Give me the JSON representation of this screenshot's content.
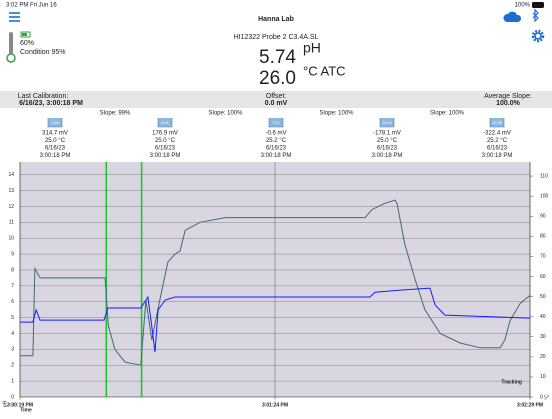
{
  "status_bar": {
    "time": "3:02 PM",
    "date": "Fri Jun 16",
    "battery": "100%"
  },
  "header": {
    "title": "Hanna Lab"
  },
  "probe": {
    "battery": "60%",
    "condition": "Condition 95%",
    "name": "HI12322 Probe 2 C3.4A.SL"
  },
  "reading": {
    "ph": "5.74",
    "ph_unit": "pH",
    "temp": "26.0",
    "temp_unit": "°C ATC"
  },
  "calibration": {
    "last_label": "Last Calibration:",
    "last_value": "6/16/23, 3:00:18 PM",
    "offset_label": "Offset:",
    "offset_value": "0.0 mV",
    "slope_label": "Average Slope:",
    "slope_value": "100.0%"
  },
  "slopes": [
    "Slope: 99%",
    "Slope: 100%",
    "Slope: 100%",
    "Slope: 100%"
  ],
  "buffers": [
    {
      "buffer": "1.68",
      "mv": "314.7 mV",
      "temp": "25.0 °C",
      "date": "6/16/23",
      "time": "3:00:18 PM"
    },
    {
      "buffer": "4.01",
      "mv": "176.9 mV",
      "temp": "25.0 °C",
      "date": "6/16/23",
      "time": "3:00:18 PM"
    },
    {
      "buffer": "7.01",
      "mv": "-0.6 mV",
      "temp": "25.2 °C",
      "date": "6/16/23",
      "time": "3:00:18 PM"
    },
    {
      "buffer": "10.01",
      "mv": "-178.1 mV",
      "temp": "25.0 °C",
      "date": "6/16/23",
      "time": "3:00:18 PM"
    },
    {
      "buffer": "12.45",
      "mv": "-322.4 mV",
      "temp": "25.2 °C",
      "date": "6/16/23",
      "time": "3:00:18 PM"
    }
  ],
  "chart_data": {
    "type": "line",
    "x_label": "Time",
    "y_label": "pH",
    "y2_label": "°C",
    "annotation": "Tracking",
    "xlim": [
      0,
      130
    ],
    "xticks": [
      {
        "value": 0,
        "label": "3:00:19 PM"
      },
      {
        "value": 65,
        "label": "3:01:24 PM"
      },
      {
        "value": 130,
        "label": "3:02:29 PM"
      }
    ],
    "ylim": [
      0,
      14.8
    ],
    "yticks": [
      0,
      1,
      2,
      3,
      4,
      5,
      6,
      7,
      8,
      9,
      10,
      11,
      12,
      13,
      14
    ],
    "y2lim": [
      0,
      117
    ],
    "y2ticks": [
      0,
      10,
      20,
      30,
      40,
      50,
      60,
      70,
      80,
      90,
      100,
      110
    ],
    "grid": true,
    "markers": [
      22,
      31
    ],
    "marker_color": "#22c22a",
    "series": [
      {
        "color": "#3f6b76",
        "x": [
          0,
          3.3,
          3.8,
          5.1,
          21.7,
          22.5,
          24.2,
          26.8,
          30.8,
          32.1,
          33.6,
          35.7,
          37.7,
          39.5,
          40.8,
          42.1,
          45.9,
          52.3,
          88.0,
          89.7,
          93.0,
          95.6,
          96.1,
          98.1,
          100.7,
          103.2,
          107.1,
          112.2,
          117.3,
          122.4,
          123.6,
          124.9,
          127.5,
          130
        ],
        "values": [
          2.6,
          2.6,
          8.1,
          7.5,
          7.5,
          4.5,
          3.0,
          2.2,
          2.0,
          6.1,
          3.6,
          6.2,
          8.5,
          9.0,
          9.2,
          10.5,
          11.0,
          11.3,
          11.3,
          11.8,
          12.2,
          12.4,
          12.2,
          9.6,
          7.4,
          5.5,
          4.0,
          3.4,
          3.1,
          3.1,
          3.6,
          4.8,
          5.9,
          6.4
        ]
      },
      {
        "color": "#1a1aff",
        "axis": "y2",
        "x": [
          0,
          3.3,
          4.1,
          5.1,
          21.4,
          22.4,
          30.8,
          32.6,
          33.6,
          34.4,
          35.2,
          37.0,
          39.5,
          89.2,
          90.5,
          96.9,
          104.5,
          105.8,
          108.3,
          130
        ],
        "values": [
          37.3,
          37.3,
          43.3,
          38.3,
          38.3,
          44.3,
          44.3,
          49.8,
          35.0,
          22.4,
          43.3,
          48.3,
          49.8,
          49.8,
          52.2,
          53.2,
          54.2,
          45.8,
          40.8,
          39.3
        ]
      }
    ]
  }
}
